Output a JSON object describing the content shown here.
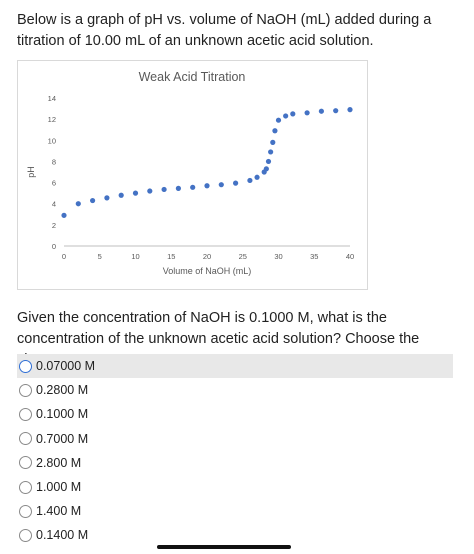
{
  "question": {
    "intro": "Below is a graph of pH vs. volume of NaOH (mL) added during a titration of 10.00 mL of an unknown acetic acid solution.",
    "prompt": "Given the concentration of NaOH is 0.1000 M, what is the concentration of the unknown acetic acid solution? Choose the closest answer."
  },
  "chart_data": {
    "type": "scatter",
    "title": "Weak Acid Titration",
    "xlabel": "Volume of NaOH (mL)",
    "ylabel": "pH",
    "xlim": [
      0,
      40
    ],
    "ylim": [
      0,
      14
    ],
    "x_ticks": [
      0,
      5,
      10,
      15,
      20,
      25,
      30,
      35,
      40
    ],
    "y_ticks": [
      0,
      2,
      4,
      6,
      8,
      10,
      12,
      14
    ],
    "grid": false,
    "legend": "none",
    "marker_color": "#4472c4",
    "points": [
      {
        "x": 0,
        "y": 2.9
      },
      {
        "x": 2,
        "y": 4.0
      },
      {
        "x": 4,
        "y": 4.3
      },
      {
        "x": 6,
        "y": 4.55
      },
      {
        "x": 8,
        "y": 4.8
      },
      {
        "x": 10,
        "y": 5.0
      },
      {
        "x": 12,
        "y": 5.2
      },
      {
        "x": 14,
        "y": 5.35
      },
      {
        "x": 16,
        "y": 5.45
      },
      {
        "x": 18,
        "y": 5.55
      },
      {
        "x": 20,
        "y": 5.7
      },
      {
        "x": 22,
        "y": 5.8
      },
      {
        "x": 24,
        "y": 5.95
      },
      {
        "x": 26,
        "y": 6.2
      },
      {
        "x": 27,
        "y": 6.5
      },
      {
        "x": 28,
        "y": 7.0
      },
      {
        "x": 28.3,
        "y": 7.3
      },
      {
        "x": 28.6,
        "y": 8.0
      },
      {
        "x": 28.9,
        "y": 8.9
      },
      {
        "x": 29.2,
        "y": 9.8
      },
      {
        "x": 29.5,
        "y": 10.9
      },
      {
        "x": 30,
        "y": 11.9
      },
      {
        "x": 31,
        "y": 12.3
      },
      {
        "x": 32,
        "y": 12.5
      },
      {
        "x": 34,
        "y": 12.6
      },
      {
        "x": 36,
        "y": 12.75
      },
      {
        "x": 38,
        "y": 12.8
      },
      {
        "x": 40,
        "y": 12.9
      }
    ]
  },
  "options": [
    {
      "label": "0.07000 M",
      "highlighted": true
    },
    {
      "label": "0.2800 M"
    },
    {
      "label": "0.1000 M"
    },
    {
      "label": "0.7000 M"
    },
    {
      "label": "2.800 M"
    },
    {
      "label": "1.000 M"
    },
    {
      "label": "1.400 M"
    },
    {
      "label": "0.1400 M"
    }
  ]
}
